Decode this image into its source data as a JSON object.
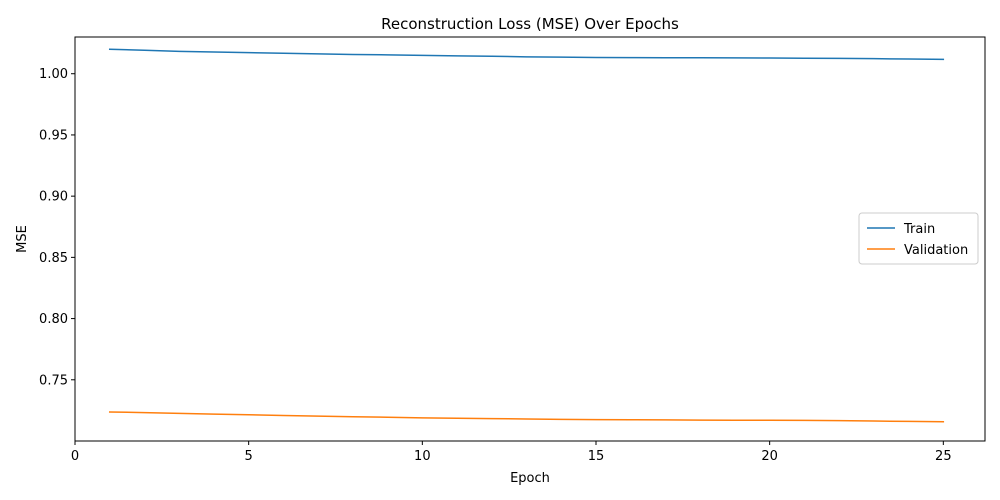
{
  "chart_data": {
    "type": "line",
    "title": "Reconstruction Loss (MSE) Over Epochs",
    "xlabel": "Epoch",
    "ylabel": "MSE",
    "xlim": [
      0,
      26.2
    ],
    "ylim": [
      0.7,
      1.03
    ],
    "xticks": [
      0,
      5,
      10,
      15,
      20,
      25
    ],
    "yticks": [
      0.75,
      0.8,
      0.85,
      0.9,
      0.95,
      1.0
    ],
    "xtick_labels": [
      "0",
      "5",
      "10",
      "15",
      "20",
      "25"
    ],
    "ytick_labels": [
      "0.75",
      "0.80",
      "0.85",
      "0.90",
      "0.95",
      "1.00"
    ],
    "grid": false,
    "legend_position": "center-right",
    "x": [
      1,
      2,
      3,
      4,
      5,
      6,
      7,
      8,
      9,
      10,
      11,
      12,
      13,
      14,
      15,
      16,
      17,
      18,
      19,
      20,
      21,
      22,
      23,
      24,
      25
    ],
    "series": [
      {
        "name": "Train",
        "color": "#1f77b4",
        "values": [
          1.02,
          1.0192,
          1.0183,
          1.0178,
          1.0172,
          1.0167,
          1.0162,
          1.0157,
          1.0154,
          1.015,
          1.0146,
          1.0143,
          1.0138,
          1.0136,
          1.0133,
          1.0132,
          1.0131,
          1.013,
          1.0129,
          1.0128,
          1.0126,
          1.0125,
          1.0123,
          1.012,
          1.0117
        ]
      },
      {
        "name": "Validation",
        "color": "#ff7f0e",
        "values": [
          0.7237,
          0.7232,
          0.7226,
          0.722,
          0.7214,
          0.7208,
          0.7203,
          0.7198,
          0.7194,
          0.7189,
          0.7186,
          0.7183,
          0.718,
          0.7177,
          0.7175,
          0.7174,
          0.7173,
          0.7171,
          0.717,
          0.7169,
          0.7168,
          0.7166,
          0.7163,
          0.716,
          0.7157
        ]
      }
    ]
  }
}
